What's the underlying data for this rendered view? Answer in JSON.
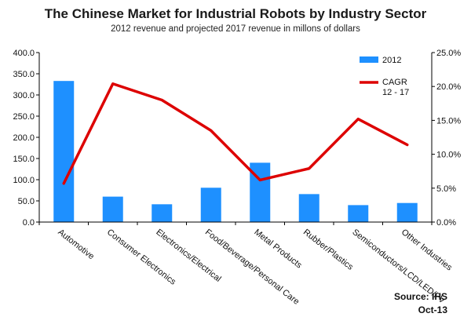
{
  "chart_data": {
    "type": "bar+line",
    "title": "The Chinese Market for Industrial Robots by Industry Sector",
    "subtitle": "2012 revenue and projected 2017 revenue in millons of dollars",
    "categories": [
      "Automotive",
      "Consumer Electronics",
      "Electronics/Electrical",
      "Food/Beverage/Personal Care",
      "Metal Products",
      "Rubber/Plastics",
      "Semiconductors/LCD/LED/PV",
      "Other Industries"
    ],
    "series": [
      {
        "name": "2012",
        "type": "bar",
        "axis": "left",
        "values": [
          333,
          60,
          42,
          81,
          140,
          66,
          40,
          45
        ]
      },
      {
        "name": "CAGR 12 - 17",
        "type": "line",
        "axis": "right",
        "values": [
          5.7,
          20.4,
          18.0,
          13.5,
          6.2,
          7.9,
          15.2,
          11.4
        ]
      }
    ],
    "y_left": {
      "min": 0,
      "max": 400,
      "step": 50,
      "tick_labels": [
        "0.0",
        "50.0",
        "100.0",
        "150.0",
        "200.0",
        "250.0",
        "300.0",
        "350.0",
        "400.0"
      ]
    },
    "y_right": {
      "min": 0,
      "max": 25,
      "step": 5,
      "tick_labels": [
        "0.0%",
        "5.0%",
        "10.0%",
        "15.0%",
        "20.0%",
        "25.0%"
      ]
    },
    "legend": {
      "placement": "top-right",
      "items": [
        {
          "label": "2012",
          "kind": "bar"
        },
        {
          "label_lines": [
            "CAGR",
            "12 - 17"
          ],
          "kind": "line"
        }
      ]
    },
    "grid": false,
    "colors": {
      "bar": "#1E90FF",
      "line": "#DD0000",
      "axis": "#000000"
    }
  },
  "footer": {
    "source": "Source: IHS",
    "date": "Oct-13"
  }
}
